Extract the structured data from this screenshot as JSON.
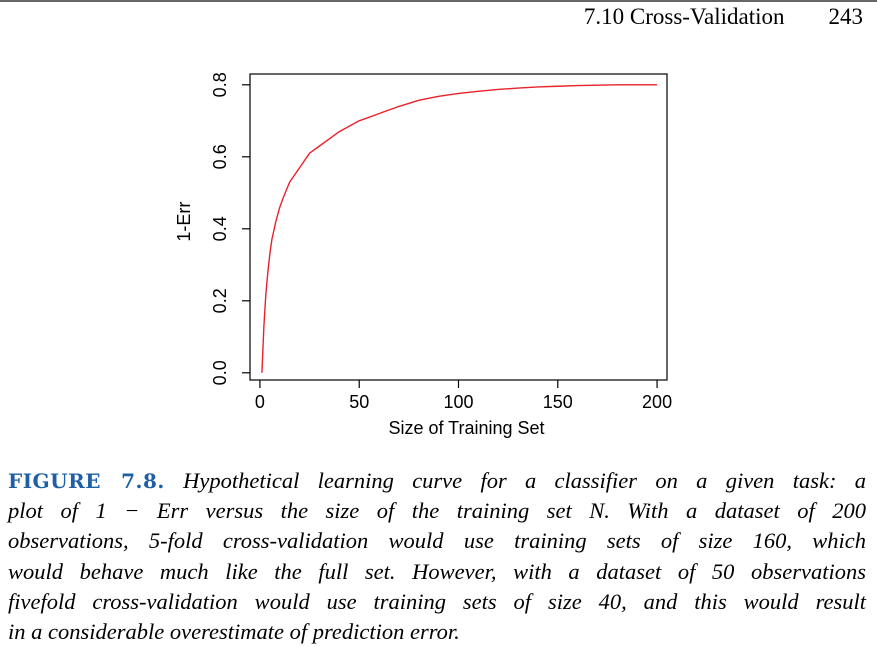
{
  "header": {
    "section": "7.10 Cross-Validation",
    "page_number": "243"
  },
  "chart_data": {
    "type": "line",
    "xlabel": "Size of Training Set",
    "ylabel": "1-Err",
    "xlim": [
      -5,
      205
    ],
    "ylim": [
      -0.02,
      0.83
    ],
    "x_ticks": [
      0,
      50,
      100,
      150,
      200
    ],
    "y_ticks": [
      0.0,
      0.2,
      0.4,
      0.6,
      0.8
    ],
    "x_tick_labels": [
      "0",
      "50",
      "100",
      "150",
      "200"
    ],
    "y_tick_labels": [
      "0.0",
      "0.2",
      "0.4",
      "0.6",
      "0.8"
    ],
    "grid": false,
    "series": [
      {
        "color": "#e8222b",
        "x": [
          1,
          2,
          3,
          4,
          5,
          6,
          8,
          10,
          12,
          15,
          20,
          25,
          30,
          35,
          40,
          50,
          60,
          70,
          80,
          90,
          100,
          110,
          120,
          130,
          140,
          150,
          160,
          170,
          180,
          190,
          200
        ],
        "y": [
          0.0,
          0.13,
          0.22,
          0.28,
          0.33,
          0.37,
          0.42,
          0.46,
          0.49,
          0.53,
          0.57,
          0.61,
          0.63,
          0.65,
          0.67,
          0.7,
          0.72,
          0.74,
          0.757,
          0.768,
          0.776,
          0.782,
          0.787,
          0.791,
          0.794,
          0.796,
          0.798,
          0.799,
          0.8,
          0.8,
          0.8
        ]
      }
    ]
  },
  "caption": {
    "label": "FIGURE 7.8.",
    "lines": [
      "Hypothetical learning curve for a classifier on a given task: a",
      "plot of 1 − Err versus the size of the training set N. With a dataset of 200",
      "observations, 5-fold cross-validation would use training sets of size 160, which",
      "would behave much like the full set. However, with a dataset of 50 observations",
      "fivefold cross-validation would use training sets of size 40, and this would result",
      "in a considerable overestimate of prediction error."
    ]
  }
}
